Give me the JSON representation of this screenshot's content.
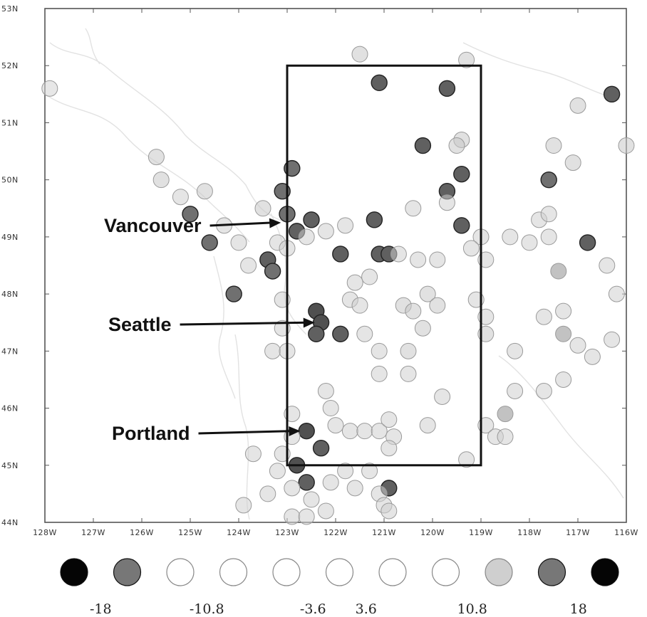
{
  "map": {
    "lon_range": [
      -128,
      -116
    ],
    "lat_range": [
      44,
      53
    ],
    "lon_ticks": [
      "128W",
      "127W",
      "126W",
      "125W",
      "124W",
      "123W",
      "122W",
      "121W",
      "120W",
      "119W",
      "118W",
      "117W",
      "116W"
    ],
    "lat_ticks": [
      "44N",
      "45N",
      "46N",
      "47N",
      "48N",
      "49N",
      "50N",
      "51N",
      "52N",
      "53N"
    ],
    "box": {
      "lon_min": -123,
      "lon_max": -119,
      "lat_min": 45,
      "lat_max": 52
    },
    "cities": [
      {
        "name": "Vancouver",
        "lon": -123.1,
        "lat": 49.25
      },
      {
        "name": "Seattle",
        "lon": -122.4,
        "lat": 47.5
      },
      {
        "name": "Portland",
        "lon": -122.7,
        "lat": 45.6
      }
    ],
    "legend": {
      "labels": [
        "-18",
        "-10.8",
        "-3.6",
        "3.6",
        "10.8",
        "18"
      ],
      "colors": [
        "#050505",
        "#777777",
        "#ffffff",
        "#ffffff",
        "#ffffff",
        "#ffffff",
        "#ffffff",
        "#ffffff",
        "#cfcfcf",
        "#777777",
        "#050505"
      ]
    },
    "stations": [
      [
        -127.9,
        51.6,
        "#d4d4d4"
      ],
      [
        -125.0,
        49.4,
        "#707070"
      ],
      [
        -124.6,
        48.9,
        "#707070"
      ],
      [
        -124.1,
        48.0,
        "#707070"
      ],
      [
        -123.4,
        48.6,
        "#606060"
      ],
      [
        -123.3,
        48.4,
        "#707070"
      ],
      [
        -123.1,
        49.8,
        "#707070"
      ],
      [
        -122.9,
        50.2,
        "#707070"
      ],
      [
        -123.0,
        49.4,
        "#707070"
      ],
      [
        -122.8,
        49.1,
        "#606060"
      ],
      [
        -122.5,
        49.3,
        "#606060"
      ],
      [
        -122.4,
        47.7,
        "#505050"
      ],
      [
        -122.3,
        47.5,
        "#505050"
      ],
      [
        -122.4,
        47.3,
        "#606060"
      ],
      [
        -121.9,
        47.3,
        "#606060"
      ],
      [
        -122.6,
        45.6,
        "#505050"
      ],
      [
        -122.3,
        45.3,
        "#606060"
      ],
      [
        -122.8,
        45.0,
        "#505050"
      ],
      [
        -122.6,
        44.7,
        "#606060"
      ],
      [
        -120.9,
        44.6,
        "#606060"
      ],
      [
        -121.1,
        51.7,
        "#606060"
      ],
      [
        -119.7,
        51.6,
        "#606060"
      ],
      [
        -120.2,
        50.6,
        "#606060"
      ],
      [
        -119.4,
        50.1,
        "#606060"
      ],
      [
        -119.7,
        49.8,
        "#606060"
      ],
      [
        -119.4,
        49.2,
        "#606060"
      ],
      [
        -121.2,
        49.3,
        "#606060"
      ],
      [
        -121.1,
        48.7,
        "#606060"
      ],
      [
        -121.9,
        48.7,
        "#606060"
      ],
      [
        -120.9,
        48.7,
        "#606060"
      ],
      [
        -117.6,
        50.0,
        "#707070"
      ],
      [
        -116.3,
        51.5,
        "#606060"
      ],
      [
        -116.8,
        48.9,
        "#606060"
      ],
      [
        -117.3,
        47.3,
        "#909090"
      ],
      [
        -117.4,
        48.4,
        "#909090"
      ],
      [
        -118.5,
        45.9,
        "#909090"
      ],
      [
        -125.7,
        50.4,
        "#c8c8c8"
      ],
      [
        -125.6,
        50.0,
        "#c8c8c8"
      ],
      [
        -125.2,
        49.7,
        "#d0d0d0"
      ],
      [
        -124.7,
        49.8,
        "#c8c8c8"
      ],
      [
        -124.3,
        49.2,
        "#d0d0d0"
      ],
      [
        -124.0,
        48.9,
        "#d0d0d0"
      ],
      [
        -123.8,
        48.5,
        "#d0d0d0"
      ],
      [
        -123.5,
        49.5,
        "#c8c8c8"
      ],
      [
        -123.2,
        48.9,
        "#d0d0d0"
      ],
      [
        -123.0,
        48.8,
        "#d0d0d0"
      ],
      [
        -122.6,
        49.0,
        "#d0d0d0"
      ],
      [
        -122.2,
        49.1,
        "#d0d0d0"
      ],
      [
        -121.8,
        49.2,
        "#d0d0d0"
      ],
      [
        -120.4,
        49.5,
        "#d0d0d0"
      ],
      [
        -120.7,
        48.7,
        "#d0d0d0"
      ],
      [
        -120.3,
        48.6,
        "#d0d0d0"
      ],
      [
        -119.9,
        48.6,
        "#d0d0d0"
      ],
      [
        -121.6,
        48.2,
        "#d0d0d0"
      ],
      [
        -121.3,
        48.3,
        "#d0d0d0"
      ],
      [
        -121.7,
        47.9,
        "#d0d0d0"
      ],
      [
        -121.5,
        47.8,
        "#d0d0d0"
      ],
      [
        -120.6,
        47.8,
        "#c8c8c8"
      ],
      [
        -120.4,
        47.7,
        "#c8c8c8"
      ],
      [
        -120.1,
        48.0,
        "#c8c8c8"
      ],
      [
        -119.9,
        47.8,
        "#c8c8c8"
      ],
      [
        -120.2,
        47.4,
        "#c8c8c8"
      ],
      [
        -120.5,
        47.0,
        "#c8c8c8"
      ],
      [
        -121.4,
        47.3,
        "#d0d0d0"
      ],
      [
        -121.1,
        47.0,
        "#d0d0d0"
      ],
      [
        -121.1,
        46.6,
        "#d0d0d0"
      ],
      [
        -120.5,
        46.6,
        "#d0d0d0"
      ],
      [
        -123.1,
        47.9,
        "#d0d0d0"
      ],
      [
        -123.1,
        47.4,
        "#d0d0d0"
      ],
      [
        -123.3,
        47.0,
        "#d0d0d0"
      ],
      [
        -123.0,
        47.0,
        "#d0d0d0"
      ],
      [
        -122.2,
        46.3,
        "#d0d0d0"
      ],
      [
        -122.1,
        46.0,
        "#d0d0d0"
      ],
      [
        -122.0,
        45.7,
        "#d0d0d0"
      ],
      [
        -121.7,
        45.6,
        "#d0d0d0"
      ],
      [
        -121.4,
        45.6,
        "#d0d0d0"
      ],
      [
        -121.1,
        45.6,
        "#d0d0d0"
      ],
      [
        -120.9,
        45.8,
        "#d0d0d0"
      ],
      [
        -120.8,
        45.5,
        "#d0d0d0"
      ],
      [
        -120.9,
        45.3,
        "#d0d0d0"
      ],
      [
        -120.1,
        45.7,
        "#d0d0d0"
      ],
      [
        -119.8,
        46.2,
        "#d0d0d0"
      ],
      [
        -122.9,
        45.9,
        "#d0d0d0"
      ],
      [
        -122.9,
        45.5,
        "#d0d0d0"
      ],
      [
        -123.1,
        45.2,
        "#d0d0d0"
      ],
      [
        -123.7,
        45.2,
        "#d0d0d0"
      ],
      [
        -123.2,
        44.9,
        "#d0d0d0"
      ],
      [
        -122.1,
        44.7,
        "#d0d0d0"
      ],
      [
        -121.6,
        44.6,
        "#d0d0d0"
      ],
      [
        -121.1,
        44.5,
        "#d0d0d0"
      ],
      [
        -121.0,
        44.3,
        "#d0d0d0"
      ],
      [
        -123.9,
        44.3,
        "#d0d0d0"
      ],
      [
        -123.4,
        44.5,
        "#d0d0d0"
      ],
      [
        -122.9,
        44.1,
        "#d0d0d0"
      ],
      [
        -122.6,
        44.1,
        "#d0d0d0"
      ],
      [
        -122.2,
        44.2,
        "#d0d0d0"
      ],
      [
        -120.9,
        44.2,
        "#d0d0d0"
      ],
      [
        -118.9,
        45.7,
        "#d0d0d0"
      ],
      [
        -118.7,
        45.5,
        "#d0d0d0"
      ],
      [
        -119.3,
        45.1,
        "#d0d0d0"
      ],
      [
        -118.5,
        45.5,
        "#d0d0d0"
      ],
      [
        -118.9,
        48.6,
        "#d0d0d0"
      ],
      [
        -119.0,
        49.0,
        "#d0d0d0"
      ],
      [
        -118.4,
        49.0,
        "#d0d0d0"
      ],
      [
        -118.0,
        48.9,
        "#d0d0d0"
      ],
      [
        -117.6,
        49.0,
        "#d0d0d0"
      ],
      [
        -117.8,
        49.3,
        "#d0d0d0"
      ],
      [
        -117.6,
        49.4,
        "#d0d0d0"
      ],
      [
        -117.1,
        50.3,
        "#c8c8c8"
      ],
      [
        -117.0,
        51.3,
        "#c8c8c8"
      ],
      [
        -116.0,
        50.6,
        "#c8c8c8"
      ],
      [
        -117.5,
        50.6,
        "#c8c8c8"
      ],
      [
        -118.9,
        47.3,
        "#c8c8c8"
      ],
      [
        -119.1,
        47.9,
        "#d0d0d0"
      ],
      [
        -118.9,
        47.6,
        "#d0d0d0"
      ],
      [
        -118.3,
        47.0,
        "#d0d0d0"
      ],
      [
        -117.7,
        47.6,
        "#d0d0d0"
      ],
      [
        -117.3,
        47.7,
        "#d0d0d0"
      ],
      [
        -117.0,
        47.1,
        "#d0d0d0"
      ],
      [
        -117.3,
        46.5,
        "#d0d0d0"
      ],
      [
        -117.7,
        46.3,
        "#d0d0d0"
      ],
      [
        -118.3,
        46.3,
        "#d0d0d0"
      ],
      [
        -116.7,
        46.9,
        "#d0d0d0"
      ],
      [
        -116.3,
        47.2,
        "#d0d0d0"
      ],
      [
        -116.2,
        48.0,
        "#d0d0d0"
      ],
      [
        -116.4,
        48.5,
        "#d0d0d0"
      ],
      [
        -121.5,
        52.2,
        "#c8c8c8"
      ],
      [
        -119.3,
        52.1,
        "#c8c8c8"
      ],
      [
        -119.4,
        50.7,
        "#c8c8c8"
      ],
      [
        -119.5,
        50.6,
        "#c8c8c8"
      ],
      [
        -119.7,
        49.6,
        "#d0d0d0"
      ],
      [
        -119.2,
        48.8,
        "#d0d0d0"
      ],
      [
        -122.9,
        44.6,
        "#d0d0d0"
      ],
      [
        -122.5,
        44.4,
        "#d0d0d0"
      ],
      [
        -121.8,
        44.9,
        "#d0d0d0"
      ],
      [
        -121.3,
        44.9,
        "#d0d0d0"
      ]
    ]
  }
}
